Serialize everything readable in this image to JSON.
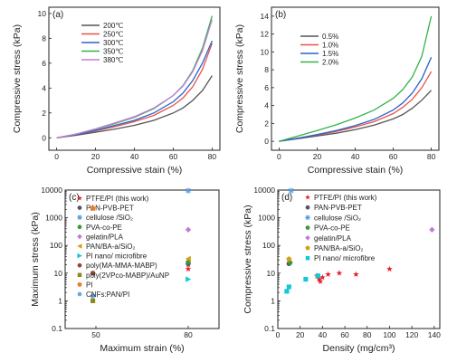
{
  "chart_data": [
    {
      "type": "line",
      "panel_label": "(a)",
      "xlabel": "Compressive stain (%)",
      "ylabel": "Compressive stress (kPa)",
      "xlim": [
        -4,
        84
      ],
      "ylim": [
        -1,
        10.5
      ],
      "xticks": [
        0,
        20,
        40,
        60,
        80
      ],
      "yticks": [
        0,
        2,
        4,
        6,
        8,
        10
      ],
      "legend_position": "top-left",
      "series": [
        {
          "name": "200℃",
          "color": "#555555",
          "x": [
            0,
            10,
            20,
            30,
            40,
            50,
            60,
            65,
            70,
            75,
            80
          ],
          "y": [
            0,
            0.2,
            0.45,
            0.7,
            1.0,
            1.4,
            2.0,
            2.4,
            3.0,
            3.8,
            5.0
          ]
        },
        {
          "name": "250℃",
          "color": "#e8514a",
          "x": [
            0,
            10,
            20,
            30,
            40,
            50,
            60,
            65,
            70,
            75,
            80
          ],
          "y": [
            0,
            0.25,
            0.55,
            0.9,
            1.3,
            1.8,
            2.6,
            3.2,
            4.1,
            5.5,
            7.6
          ]
        },
        {
          "name": "300℃",
          "color": "#2a63c9",
          "x": [
            0,
            10,
            20,
            30,
            40,
            50,
            60,
            65,
            70,
            75,
            80
          ],
          "y": [
            0,
            0.25,
            0.6,
            1.0,
            1.4,
            2.0,
            2.9,
            3.6,
            4.6,
            6.0,
            7.8
          ]
        },
        {
          "name": "350℃",
          "color": "#34b24a",
          "x": [
            0,
            10,
            20,
            30,
            40,
            50,
            60,
            65,
            70,
            75,
            80
          ],
          "y": [
            0,
            0.3,
            0.7,
            1.15,
            1.65,
            2.35,
            3.4,
            4.2,
            5.4,
            7.2,
            9.8
          ]
        },
        {
          "name": "380℃",
          "color": "#c47ed8",
          "x": [
            0,
            10,
            20,
            30,
            40,
            50,
            60,
            65,
            70,
            75,
            80
          ],
          "y": [
            0,
            0.3,
            0.72,
            1.2,
            1.7,
            2.4,
            3.4,
            4.15,
            5.3,
            7.0,
            9.5
          ]
        }
      ]
    },
    {
      "type": "line",
      "panel_label": "(b)",
      "xlabel": "Compressive stain (%)",
      "ylabel": "Compressive stress (kPa)",
      "xlim": [
        -4,
        84
      ],
      "ylim": [
        -1,
        15
      ],
      "xticks": [
        0,
        20,
        40,
        60,
        80
      ],
      "yticks": [
        0,
        2,
        4,
        6,
        8,
        10,
        12,
        14
      ],
      "legend_position": "top-left",
      "series": [
        {
          "name": "0.5%",
          "color": "#555555",
          "x": [
            0,
            10,
            20,
            30,
            40,
            50,
            60,
            65,
            70,
            75,
            80
          ],
          "y": [
            0,
            0.3,
            0.6,
            0.9,
            1.3,
            1.8,
            2.5,
            3.0,
            3.7,
            4.6,
            5.7
          ]
        },
        {
          "name": "1.0%",
          "color": "#e8514a",
          "x": [
            0,
            10,
            20,
            30,
            40,
            50,
            60,
            65,
            70,
            75,
            80
          ],
          "y": [
            0,
            0.35,
            0.7,
            1.1,
            1.6,
            2.2,
            3.1,
            3.8,
            4.7,
            6.0,
            7.8
          ]
        },
        {
          "name": "1.5%",
          "color": "#2a63c9",
          "x": [
            0,
            10,
            20,
            30,
            40,
            50,
            60,
            65,
            70,
            75,
            80
          ],
          "y": [
            0,
            0.35,
            0.75,
            1.2,
            1.75,
            2.45,
            3.5,
            4.3,
            5.4,
            7.0,
            9.4
          ]
        },
        {
          "name": "2.0%",
          "color": "#34b24a",
          "x": [
            0,
            10,
            20,
            30,
            40,
            50,
            60,
            65,
            70,
            75,
            80
          ],
          "y": [
            0,
            0.6,
            1.2,
            1.85,
            2.6,
            3.5,
            4.8,
            5.8,
            7.2,
            9.5,
            14.0
          ]
        }
      ]
    },
    {
      "type": "scatter",
      "panel_label": "(c)",
      "xlabel": "Maximum strain (%)",
      "ylabel": "Maximum stress (kPa)",
      "xscale": "linear",
      "yscale": "log",
      "xlim": [
        40,
        90
      ],
      "ylim": [
        0.1,
        10000
      ],
      "xticks": [
        50,
        80
      ],
      "yticks": [
        0.1,
        1,
        10,
        100,
        1000,
        10000
      ],
      "ytick_labels": [
        "0.1",
        "1",
        "10",
        "100",
        "1000",
        "10000"
      ],
      "legend_position": "top-left",
      "series": [
        {
          "name": "PTFE/PI (this work)",
          "marker": "star",
          "color": "#e8202a",
          "x": [
            80,
            80
          ],
          "y": [
            20,
            14
          ]
        },
        {
          "name": "PAN-PVB-PET",
          "marker": "circle",
          "color": "#555566",
          "x": [
            80
          ],
          "y": [
            22
          ]
        },
        {
          "name": "cellulose /SiO₂",
          "marker": "asterisk",
          "color": "#5aa0e0",
          "x": [
            80
          ],
          "y": [
            9500
          ]
        },
        {
          "name": "PVA-co-PE",
          "marker": "circle",
          "color": "#3a9a3a",
          "x": [
            80
          ],
          "y": [
            25
          ]
        },
        {
          "name": "gelatin/PLA",
          "marker": "diamond",
          "color": "#c07ad6",
          "x": [
            80
          ],
          "y": [
            370
          ]
        },
        {
          "name": "PAN/BA-a/SiO₂",
          "marker": "triangle-left",
          "color": "#d4a017",
          "x": [
            80
          ],
          "y": [
            33
          ]
        },
        {
          "name": "PI nano/ microfibre",
          "marker": "triangle-right",
          "color": "#12c8d8",
          "x": [
            80
          ],
          "y": [
            6
          ]
        },
        {
          "name": "poly(MA-MMA-MABP)",
          "marker": "circle",
          "color": "#8b4a3a",
          "x": [
            49
          ],
          "y": [
            10
          ]
        },
        {
          "name": "poly(2VPco-MABP)/AuNP",
          "marker": "square",
          "color": "#8a8a1a",
          "x": [
            49
          ],
          "y": [
            1
          ]
        },
        {
          "name": "PI",
          "marker": "pentagon",
          "color": "#f07a20",
          "x": [
            49
          ],
          "y": [
            2200
          ]
        },
        {
          "name": "CNFs:PAN/PI",
          "marker": "circle",
          "color": "#6aa8e0",
          "x": [
            49
          ],
          "y": [
            1.5
          ]
        }
      ]
    },
    {
      "type": "scatter",
      "panel_label": "(d)",
      "xlabel": "Density (mg/cm³)",
      "ylabel": "Compressive stress (kPa)",
      "xscale": "linear",
      "yscale": "log",
      "xlim": [
        0,
        145
      ],
      "ylim": [
        0.1,
        10000
      ],
      "xticks": [
        0,
        20,
        40,
        60,
        80,
        100,
        120,
        140
      ],
      "yticks": [
        0.1,
        1,
        10,
        100,
        1000,
        10000
      ],
      "ytick_labels": [
        "0.1",
        "1",
        "10",
        "100",
        "1000",
        "10000"
      ],
      "legend_position": "top-center",
      "series": [
        {
          "name": "PTFE/PI (this work)",
          "marker": "star",
          "color": "#e8202a",
          "x": [
            35,
            37,
            38,
            40,
            45,
            55,
            70,
            100
          ],
          "y": [
            8,
            6,
            5,
            7,
            9,
            10,
            9,
            14
          ]
        },
        {
          "name": "PAN-PVB-PET",
          "marker": "circle",
          "color": "#555566",
          "x": [
            10
          ],
          "y": [
            22
          ]
        },
        {
          "name": "cellulose /SiO₂",
          "marker": "asterisk",
          "color": "#5aa0e0",
          "x": [
            12
          ],
          "y": [
            9500
          ]
        },
        {
          "name": "PVA-co-PE",
          "marker": "circle",
          "color": "#3a9a3a",
          "x": [
            11
          ],
          "y": [
            24
          ]
        },
        {
          "name": "gelatin/PLA",
          "marker": "diamond",
          "color": "#c07ad6",
          "x": [
            138
          ],
          "y": [
            370
          ]
        },
        {
          "name": "PAN/BA-a/SiO₂",
          "marker": "pentagon",
          "color": "#d4a017",
          "x": [
            10
          ],
          "y": [
            32
          ]
        },
        {
          "name": "PI nano/ microfibre",
          "marker": "square",
          "color": "#12c8d8",
          "x": [
            8,
            10,
            25,
            36
          ],
          "y": [
            2.2,
            3.2,
            6,
            8
          ]
        }
      ]
    }
  ]
}
